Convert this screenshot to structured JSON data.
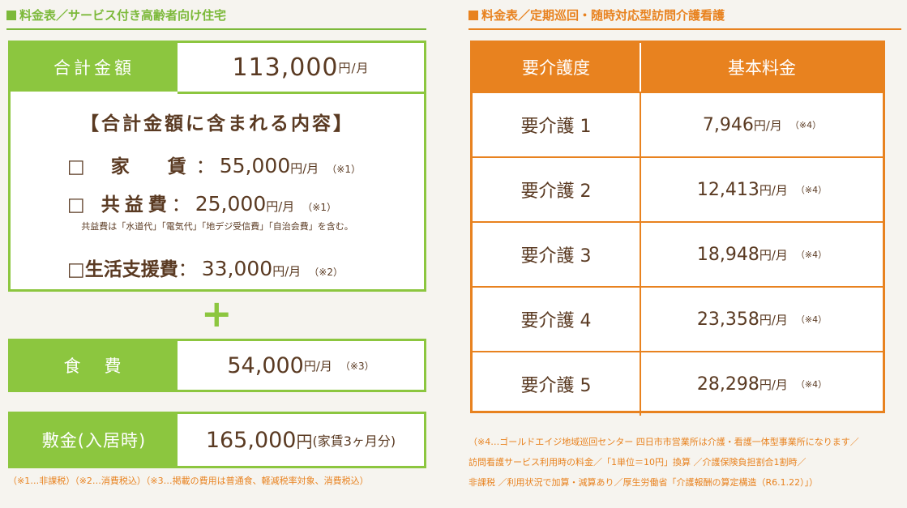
{
  "left": {
    "title": "料金表／サービス付き高齢者向け住宅",
    "total": {
      "label": "合計金額",
      "amount": "113,000",
      "unit": "円/月"
    },
    "includes_title": "【合計金額に含まれる内容】",
    "items": [
      {
        "name": "□ 家　賃",
        "sep": "：",
        "amount": "55,000",
        "unit": "円/月",
        "note": "（※1）"
      },
      {
        "name": "□ 共益費",
        "sep": "：",
        "amount": "25,000",
        "unit": "円/月",
        "note": "（※1）"
      },
      {
        "name": "□生活支援費",
        "sep": "：",
        "amount": "33,000",
        "unit": "円/月",
        "note": "（※2）"
      }
    ],
    "common_fee_note": "共益費は「水道代」「電気代」「地デジ受信費」「自治会費」を含む。",
    "plus": "+",
    "food": {
      "label": "食　費",
      "amount": "54,000",
      "unit": "円/月",
      "note": "（※3）"
    },
    "deposit": {
      "label": "敷金(入居時)",
      "amount": "165,000",
      "unit": "円",
      "note": "(家賃3ヶ月分)"
    },
    "footnote": "（※1…非課税）（※2…消費税込）（※3…掲載の費用は普通食、軽減税率対象、消費税込）"
  },
  "right": {
    "title": "料金表／定期巡回・随時対応型訪問介護看護",
    "headers": {
      "level": "要介護度",
      "fee": "基本料金"
    },
    "rows": [
      {
        "level": "要介護 1",
        "amount": "7,946",
        "unit": "円/月",
        "note": "（※4）"
      },
      {
        "level": "要介護 2",
        "amount": "12,413",
        "unit": "円/月",
        "note": "（※4）"
      },
      {
        "level": "要介護 3",
        "amount": "18,948",
        "unit": "円/月",
        "note": "（※4）"
      },
      {
        "level": "要介護 4",
        "amount": "23,358",
        "unit": "円/月",
        "note": "（※4）"
      },
      {
        "level": "要介護 5",
        "amount": "28,298",
        "unit": "円/月",
        "note": "（※4）"
      }
    ],
    "footnote_lines": [
      "（※4…ゴールドエイジ地域巡回センター 四日市市営業所は介護・看護一体型事業所になります／",
      "訪問看護サービス利用時の料金／「1単位＝10円」換算 ／介護保険負担割合1割時／",
      "非課税 ／利用状況で加算・減算あり／厚生労働省「介護報酬の算定構造（R6.1.22）」）"
    ]
  },
  "colors": {
    "green": "#8cc63f",
    "orange": "#e8821f",
    "text": "#5a3a22"
  }
}
